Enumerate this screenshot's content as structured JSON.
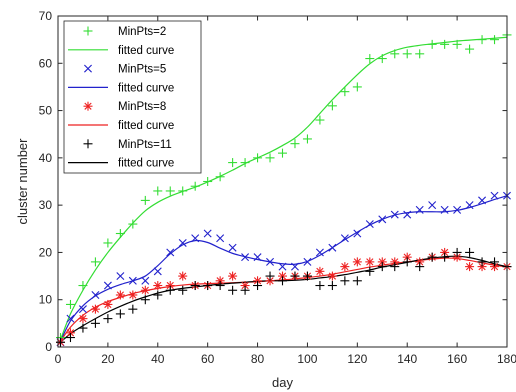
{
  "chart_data": {
    "type": "scatter",
    "title": "",
    "xlabel": "day",
    "ylabel": "cluster number",
    "xlim": [
      0,
      180
    ],
    "ylim": [
      0,
      70
    ],
    "xticks": [
      0,
      20,
      40,
      60,
      80,
      100,
      120,
      140,
      160,
      180
    ],
    "yticks": [
      0,
      10,
      20,
      30,
      40,
      50,
      60,
      70
    ],
    "grid": false,
    "legend_position": "top-left",
    "x": [
      1,
      5,
      10,
      15,
      20,
      25,
      30,
      35,
      40,
      45,
      50,
      55,
      60,
      65,
      70,
      75,
      80,
      85,
      90,
      95,
      100,
      105,
      110,
      115,
      120,
      125,
      130,
      135,
      140,
      145,
      150,
      155,
      160,
      165,
      170,
      175,
      180
    ],
    "series": [
      {
        "name": "MinPts=2",
        "marker": "+",
        "color": "#33dd33",
        "values": [
          2,
          9,
          13,
          18,
          22,
          24,
          26,
          31,
          33,
          33,
          33,
          34,
          35,
          36,
          39,
          39,
          40,
          40,
          41,
          43,
          44,
          48,
          51,
          54,
          55,
          61,
          61,
          62,
          62,
          62,
          64,
          64,
          64,
          63,
          65,
          65,
          66
        ],
        "fit": [
          1.5,
          7,
          12,
          16.3,
          20,
          23.2,
          26.2,
          28.8,
          30.6,
          31.9,
          32.9,
          33.8,
          34.9,
          36.1,
          37.4,
          38.8,
          40,
          41.2,
          42.6,
          44.2,
          46.5,
          49.4,
          52.3,
          55,
          57.6,
          59.9,
          61.6,
          62.7,
          63.4,
          63.8,
          64.1,
          64.4,
          64.7,
          64.9,
          65.1,
          65.3,
          65.5
        ]
      },
      {
        "name": "MinPts=5",
        "marker": "x",
        "color": "#2222cc",
        "values": [
          1,
          6,
          8,
          11,
          13,
          15,
          14,
          14,
          16,
          20,
          22,
          23,
          24,
          23,
          21,
          19,
          19,
          18,
          17,
          17,
          18,
          20,
          21,
          23,
          24,
          26,
          27,
          28,
          28,
          29,
          30,
          29,
          29,
          30,
          31,
          32,
          32
        ],
        "fit": [
          1.2,
          5.5,
          8.7,
          10.8,
          12.2,
          13.2,
          14,
          15,
          17.2,
          19.7,
          21.6,
          22.5,
          22.1,
          20.9,
          19.8,
          19.1,
          18.5,
          18,
          17.6,
          17.5,
          18.1,
          19.4,
          21,
          22.7,
          24.3,
          25.8,
          27,
          27.9,
          28.4,
          28.6,
          28.6,
          28.6,
          28.9,
          29.5,
          30.3,
          31.2,
          32
        ]
      },
      {
        "name": "MinPts=8",
        "marker": "*",
        "color": "#ee2222",
        "values": [
          1,
          3,
          6,
          8,
          9,
          11,
          11,
          12,
          13,
          13,
          15,
          13,
          13,
          14,
          15,
          13,
          14,
          14,
          15,
          15,
          15,
          16,
          15,
          17,
          18,
          18,
          18,
          18,
          19,
          18,
          19,
          20,
          19,
          17,
          17,
          17,
          17
        ],
        "fit": [
          1.2,
          4.2,
          6.7,
          8.4,
          9.6,
          10.5,
          11.3,
          11.9,
          12.4,
          12.8,
          13.1,
          13.3,
          13.4,
          13.5,
          13.6,
          13.7,
          13.8,
          14,
          14.2,
          14.4,
          14.7,
          15,
          15.4,
          15.9,
          16.4,
          16.9,
          17.3,
          17.7,
          18,
          18.3,
          18.6,
          18.8,
          18.7,
          18.3,
          17.8,
          17.3,
          16.9
        ]
      },
      {
        "name": "MinPts=11",
        "marker": "+",
        "color": "#000000",
        "values": [
          1,
          2,
          4,
          5,
          6,
          7,
          8,
          10,
          11,
          12,
          12,
          13,
          13,
          13,
          12,
          12,
          13,
          15,
          14,
          15,
          15,
          13,
          13,
          14,
          14,
          16,
          17,
          17,
          18,
          17,
          19,
          19,
          20,
          20,
          18,
          18,
          17
        ],
        "fit": [
          1,
          2.8,
          4.5,
          6,
          7.4,
          8.6,
          9.7,
          10.6,
          11.4,
          12,
          12.4,
          12.7,
          13,
          13.3,
          13.5,
          13.7,
          13.9,
          14,
          14,
          14.1,
          14.3,
          14.6,
          14.9,
          15.3,
          15.8,
          16.3,
          16.9,
          17.4,
          17.9,
          18.4,
          18.8,
          19.1,
          19.2,
          18.9,
          18.3,
          17.6,
          17
        ]
      }
    ],
    "legend": {
      "entries": [
        {
          "label": "MinPts=2",
          "kind": "marker",
          "series": 0
        },
        {
          "label": "fitted curve",
          "kind": "line",
          "series": 0
        },
        {
          "label": "MinPts=5",
          "kind": "marker",
          "series": 1
        },
        {
          "label": "fitted curve",
          "kind": "line",
          "series": 1
        },
        {
          "label": "MinPts=8",
          "kind": "marker",
          "series": 2
        },
        {
          "label": "fitted curve",
          "kind": "line",
          "series": 2
        },
        {
          "label": "MinPts=11",
          "kind": "marker",
          "series": 3
        },
        {
          "label": "fitted curve",
          "kind": "line",
          "series": 3
        }
      ]
    }
  }
}
